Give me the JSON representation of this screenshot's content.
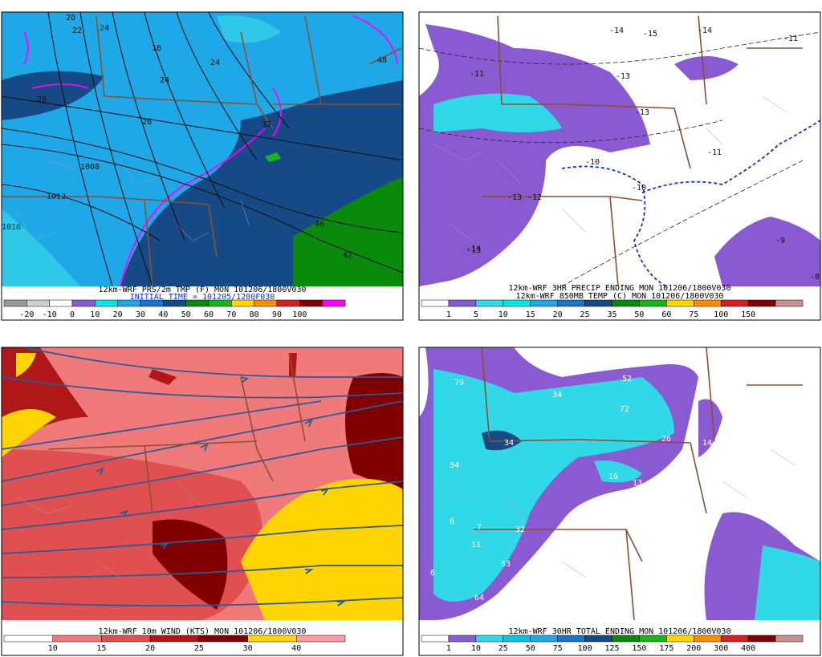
{
  "panels": [
    {
      "title_lines": [
        "12km-WRF PRS/2m TMP (F) MON 101206/1800V030",
        "INITIAL TIME = 101205/1200F030"
      ],
      "colorbar": {
        "colors": [
          "#9a9a9a",
          "#cfcfcf",
          "#ffffff",
          "#8a5ad2",
          "#00e8e8",
          "#1ea8e8",
          "#1a74c8",
          "#164a86",
          "#0a8a0a",
          "#14b814",
          "#ffd400",
          "#ff8c00",
          "#d42020",
          "#800000",
          "#ff00ff"
        ],
        "labels": [
          "-20",
          "-10",
          "0",
          "10",
          "20",
          "30",
          "40",
          "50",
          "60",
          "70",
          "80",
          "90",
          "100"
        ]
      },
      "labels": [
        "20",
        "22",
        "24",
        "18",
        "24",
        "24",
        "26",
        "28",
        "1008",
        "1012",
        "1016",
        "32",
        "40",
        "42",
        "48"
      ]
    },
    {
      "title_lines": [
        "12km-WRF 3HR PRECIP ENDING MON 101206/1800V030",
        "12km-WRF 850MB TEMP (C) MON 101206/1800V030"
      ],
      "colorbar": {
        "colors": [
          "#ffffff",
          "#8a5ad2",
          "#30d8e8",
          "#00e8e8",
          "#1ea8e8",
          "#1a74c8",
          "#164a86",
          "#0a8a0a",
          "#14b814",
          "#ffd400",
          "#ff8c00",
          "#d42020",
          "#800000",
          "#c89090"
        ],
        "labels": [
          "1",
          "5",
          "10",
          "15",
          "20",
          "25",
          "35",
          "50",
          "60",
          "75",
          "100",
          "150"
        ]
      },
      "labels": [
        "-14",
        "-15",
        "-14",
        "-11",
        "-11",
        "-13",
        "-13",
        "-13",
        "-10",
        "-11",
        "-10",
        "-12",
        "-13",
        "-14",
        "-9",
        "-8"
      ]
    },
    {
      "title_lines": [
        "12km-WRF 10m WIND (KTS) MON 101206/1800V030"
      ],
      "colorbar": {
        "colors": [
          "#ffffff",
          "#f07a7a",
          "#e05050",
          "#b01818",
          "#800000",
          "#ffd400",
          "#ff9aa0"
        ],
        "labels": [
          "10",
          "15",
          "20",
          "25",
          "30",
          "40"
        ]
      },
      "labels": []
    },
    {
      "title_lines": [
        "12km-WRF 30HR TOTAL ENDING MON 101206/1800V030"
      ],
      "colorbar": {
        "colors": [
          "#ffffff",
          "#8a5ad2",
          "#30d8e8",
          "#00c8e0",
          "#1ea8e8",
          "#1a74c8",
          "#164a86",
          "#0a8a0a",
          "#14b814",
          "#ffd400",
          "#ff8c00",
          "#d42020",
          "#800000",
          "#c89090"
        ],
        "labels": [
          "1",
          "10",
          "25",
          "50",
          "75",
          "100",
          "125",
          "150",
          "175",
          "200",
          "300",
          "400"
        ]
      },
      "labels": [
        "79",
        "34",
        "52",
        "72",
        "54",
        "34",
        "26",
        "16",
        "13",
        "14",
        "6",
        "7",
        "32",
        "11",
        "53",
        "6",
        "64"
      ]
    }
  ]
}
